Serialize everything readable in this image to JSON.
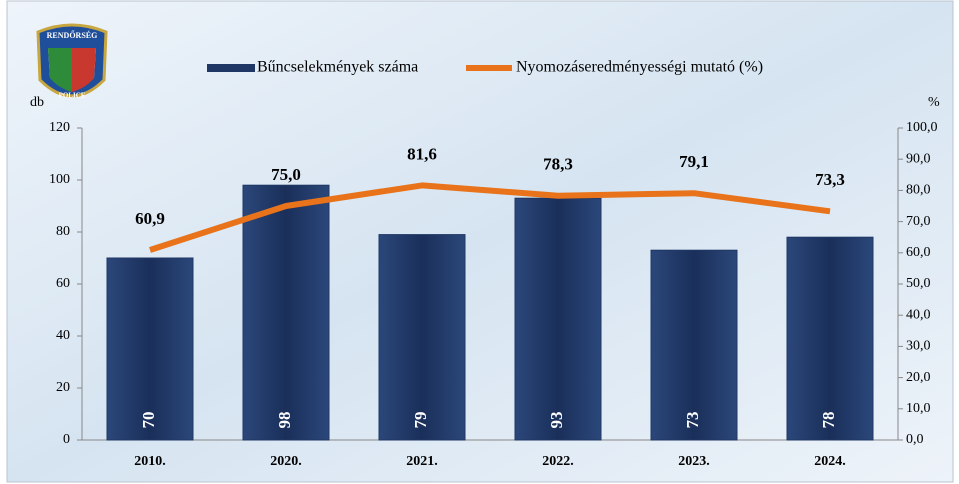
{
  "logo": {
    "top": "RENDŐRSÉG",
    "bottom": "POLICE"
  },
  "chart_data": {
    "type": "combo",
    "y_label": "db",
    "y2_label": "%",
    "categories": [
      "2010.",
      "2020.",
      "2021.",
      "2022.",
      "2023.",
      "2024."
    ],
    "series": [
      {
        "name": "Bűncselekmények száma",
        "type": "bar",
        "color": "#1f3764",
        "axis": "y",
        "values": [
          70,
          98,
          79,
          93,
          73,
          78
        ]
      },
      {
        "name": "Nyomozáseredményességi mutató (%)",
        "type": "line",
        "color": "#e8731a",
        "axis": "y2",
        "values": [
          60.9,
          75.0,
          81.6,
          78.3,
          79.1,
          73.3
        ],
        "value_labels": [
          "60,9",
          "75,0",
          "81,6",
          "78,3",
          "79,1",
          "73,3"
        ]
      }
    ],
    "ylim": [
      0,
      120
    ],
    "yticks": [
      0,
      20,
      40,
      60,
      80,
      100,
      120
    ],
    "y2lim": [
      0,
      100
    ],
    "y2ticks": [
      {
        "value": 0,
        "label": "0,0"
      },
      {
        "value": 10,
        "label": "10,0"
      },
      {
        "value": 20,
        "label": "20,0"
      },
      {
        "value": 30,
        "label": "30,0"
      },
      {
        "value": 40,
        "label": "40,0"
      },
      {
        "value": 50,
        "label": "50,0"
      },
      {
        "value": 60,
        "label": "60,0"
      },
      {
        "value": 70,
        "label": "70,0"
      },
      {
        "value": 80,
        "label": "80,0"
      },
      {
        "value": 90,
        "label": "90,0"
      },
      {
        "value": 100,
        "label": "100,0"
      }
    ]
  }
}
